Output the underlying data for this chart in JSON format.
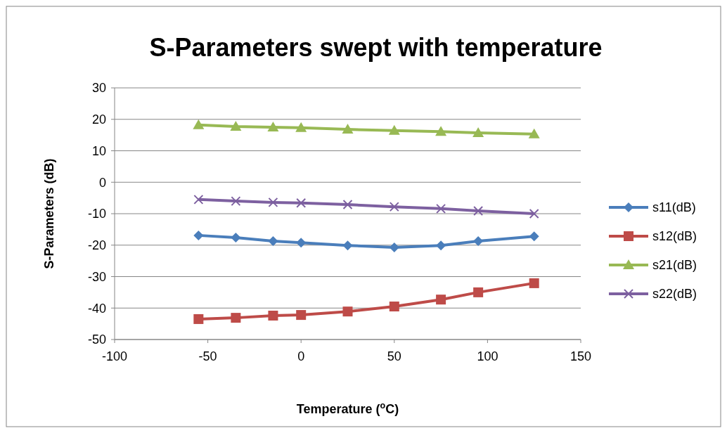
{
  "chart_data": {
    "type": "line",
    "title": "S-Parameters swept with temperature",
    "xlabel": "Temperature ($^{o}$C)",
    "ylabel": "S-Parameters (dB)",
    "x": [
      -55,
      -35,
      -15,
      0,
      25,
      50,
      75,
      95,
      125
    ],
    "xlim": [
      -100,
      150
    ],
    "xticks": [
      -100,
      -50,
      0,
      50,
      100,
      150
    ],
    "ylim": [
      -50,
      30
    ],
    "yticks": [
      -50,
      -40,
      -30,
      -20,
      -10,
      0,
      10,
      20,
      30
    ],
    "grid": "y",
    "legend": "right",
    "series": [
      {
        "name": "s11(dB)",
        "color": "#4a7ebb",
        "marker": "diamond",
        "values": [
          -16.9,
          -17.6,
          -18.7,
          -19.2,
          -20.1,
          -20.7,
          -20.1,
          -18.7,
          -17.2
        ]
      },
      {
        "name": "s12(dB)",
        "color": "#be4b48",
        "marker": "square",
        "values": [
          -43.5,
          -43.1,
          -42.4,
          -42.2,
          -41.1,
          -39.5,
          -37.3,
          -35.0,
          -32.1
        ]
      },
      {
        "name": "s21(dB)",
        "color": "#98b954",
        "marker": "triangle",
        "values": [
          18.2,
          17.7,
          17.5,
          17.3,
          16.8,
          16.4,
          16.1,
          15.7,
          15.3
        ]
      },
      {
        "name": "s22(dB)",
        "color": "#7d60a0",
        "marker": "cross",
        "values": [
          -5.5,
          -6.0,
          -6.4,
          -6.6,
          -7.1,
          -7.8,
          -8.4,
          -9.1,
          -10.0
        ]
      }
    ]
  }
}
